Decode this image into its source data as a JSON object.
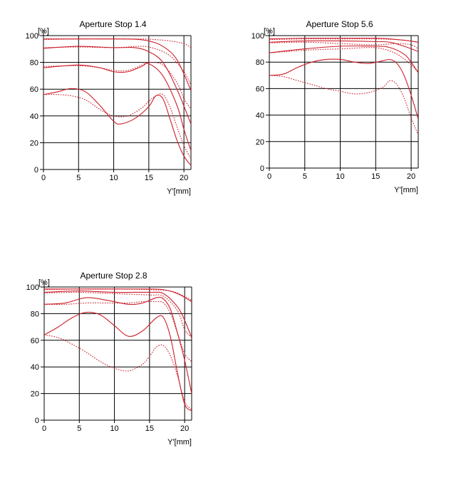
{
  "chart_data": [
    {
      "type": "line",
      "title": "Aperture Stop 1.4",
      "ylabel": "[%]",
      "xlabel": "Y'[mm]",
      "xlim": [
        0,
        21
      ],
      "ylim": [
        0,
        100
      ],
      "xticks": [
        0,
        5,
        10,
        15,
        20
      ],
      "yticks": [
        0,
        20,
        40,
        60,
        80,
        100
      ],
      "grid": true,
      "color": "#cc1f2a",
      "series": [
        {
          "style": "solid",
          "points": [
            [
              0,
              97.5
            ],
            [
              5,
              97.5
            ],
            [
              10,
              97.5
            ],
            [
              13,
              97.3
            ],
            [
              15,
              96
            ],
            [
              17,
              92
            ],
            [
              19,
              82
            ],
            [
              21,
              59
            ]
          ]
        },
        {
          "style": "dotted",
          "points": [
            [
              0,
              97
            ],
            [
              5,
              97.5
            ],
            [
              10,
              97.5
            ],
            [
              14,
              97.5
            ],
            [
              16,
              97
            ],
            [
              18,
              96
            ],
            [
              20,
              94
            ],
            [
              21,
              91
            ]
          ]
        },
        {
          "style": "solid",
          "points": [
            [
              0,
              90.5
            ],
            [
              5,
              92
            ],
            [
              10,
              91
            ],
            [
              13,
              91
            ],
            [
              15,
              88
            ],
            [
              17,
              80
            ],
            [
              19,
              60
            ],
            [
              21,
              34
            ]
          ]
        },
        {
          "style": "dotted",
          "points": [
            [
              0,
              91
            ],
            [
              5,
              91.5
            ],
            [
              10,
              91
            ],
            [
              14,
              92
            ],
            [
              16,
              90
            ],
            [
              18,
              85
            ],
            [
              20,
              73
            ],
            [
              21,
              63
            ]
          ]
        },
        {
          "style": "solid",
          "points": [
            [
              0,
              76
            ],
            [
              5,
              78
            ],
            [
              8,
              76
            ],
            [
              10,
              73
            ],
            [
              12,
              73
            ],
            [
              14,
              77
            ],
            [
              15,
              79
            ],
            [
              17,
              70
            ],
            [
              19,
              48
            ],
            [
              20,
              30
            ],
            [
              21,
              14
            ]
          ]
        },
        {
          "style": "dotted",
          "points": [
            [
              0,
              77
            ],
            [
              5,
              77.5
            ],
            [
              8,
              76
            ],
            [
              10,
              74
            ],
            [
              12,
              74
            ],
            [
              14,
              78
            ],
            [
              15,
              80
            ],
            [
              17,
              78
            ],
            [
              19,
              65
            ],
            [
              20,
              53
            ],
            [
              21,
              45
            ]
          ]
        },
        {
          "style": "solid",
          "points": [
            [
              0,
              56
            ],
            [
              2,
              58
            ],
            [
              4,
              60.5
            ],
            [
              6,
              58
            ],
            [
              8,
              48
            ],
            [
              10,
              36
            ],
            [
              11,
              34
            ],
            [
              13,
              38
            ],
            [
              15,
              47
            ],
            [
              16,
              55
            ],
            [
              17,
              53
            ],
            [
              18,
              38
            ],
            [
              19,
              22
            ],
            [
              20,
              10
            ],
            [
              21,
              3
            ]
          ]
        },
        {
          "style": "dotted",
          "points": [
            [
              0,
              56
            ],
            [
              2,
              56
            ],
            [
              4,
              55
            ],
            [
              6,
              52
            ],
            [
              8,
              45
            ],
            [
              10,
              40
            ],
            [
              12,
              40
            ],
            [
              14,
              46
            ],
            [
              15,
              51
            ],
            [
              16,
              55
            ],
            [
              17,
              56
            ],
            [
              18,
              47
            ],
            [
              19,
              32
            ],
            [
              20,
              18
            ],
            [
              21,
              8
            ]
          ]
        }
      ]
    },
    {
      "type": "line",
      "title": "Aperture Stop 5.6",
      "ylabel": "[%]",
      "xlabel": "Y'[mm]",
      "xlim": [
        0,
        21
      ],
      "ylim": [
        0,
        100
      ],
      "xticks": [
        0,
        5,
        10,
        15,
        20
      ],
      "yticks": [
        0,
        20,
        40,
        60,
        80,
        100
      ],
      "grid": true,
      "color": "#cc1f2a",
      "series": [
        {
          "style": "solid",
          "points": [
            [
              0,
              97.5
            ],
            [
              5,
              98
            ],
            [
              10,
              98
            ],
            [
              15,
              98
            ],
            [
              17,
              97.5
            ],
            [
              19,
              96.5
            ],
            [
              21,
              95
            ]
          ]
        },
        {
          "style": "dotted",
          "points": [
            [
              0,
              97
            ],
            [
              5,
              97.5
            ],
            [
              10,
              97.5
            ],
            [
              15,
              97.5
            ],
            [
              18,
              97
            ],
            [
              20,
              96
            ],
            [
              21,
              95
            ]
          ]
        },
        {
          "style": "solid",
          "points": [
            [
              0,
              95
            ],
            [
              5,
              96
            ],
            [
              10,
              96
            ],
            [
              15,
              95.5
            ],
            [
              17,
              95
            ],
            [
              19,
              92
            ],
            [
              21,
              88
            ]
          ]
        },
        {
          "style": "dotted",
          "points": [
            [
              0,
              94.5
            ],
            [
              5,
              95
            ],
            [
              10,
              94
            ],
            [
              15,
              93
            ],
            [
              18,
              94
            ],
            [
              20,
              93
            ],
            [
              21,
              90
            ]
          ]
        },
        {
          "style": "solid",
          "points": [
            [
              0,
              87
            ],
            [
              5,
              90
            ],
            [
              10,
              92
            ],
            [
              15,
              92
            ],
            [
              17,
              91
            ],
            [
              19,
              86
            ],
            [
              20,
              80
            ],
            [
              21,
              72
            ]
          ]
        },
        {
          "style": "dotted",
          "points": [
            [
              0,
              87
            ],
            [
              5,
              89
            ],
            [
              10,
              90
            ],
            [
              14,
              91
            ],
            [
              16,
              90
            ],
            [
              18,
              86
            ],
            [
              20,
              78
            ],
            [
              21,
              72
            ]
          ]
        },
        {
          "style": "solid",
          "points": [
            [
              0,
              70
            ],
            [
              2,
              71
            ],
            [
              4,
              76
            ],
            [
              6,
              80
            ],
            [
              8,
              82
            ],
            [
              10,
              82
            ],
            [
              12,
              80
            ],
            [
              14,
              79
            ],
            [
              16,
              81
            ],
            [
              17,
              82
            ],
            [
              18,
              79
            ],
            [
              19,
              70
            ],
            [
              20,
              55
            ],
            [
              21,
              37
            ]
          ]
        },
        {
          "style": "dotted",
          "points": [
            [
              0,
              70
            ],
            [
              2,
              69
            ],
            [
              4,
              66
            ],
            [
              6,
              63
            ],
            [
              8,
              60
            ],
            [
              10,
              58
            ],
            [
              12,
              56
            ],
            [
              14,
              57
            ],
            [
              16,
              61
            ],
            [
              17,
              66
            ],
            [
              18,
              63
            ],
            [
              19,
              53
            ],
            [
              20,
              38
            ],
            [
              21,
              25
            ]
          ]
        }
      ]
    },
    {
      "type": "line",
      "title": "Aperture Stop 2.8",
      "ylabel": "[%]",
      "xlabel": "Y'[mm]",
      "xlim": [
        0,
        21
      ],
      "ylim": [
        0,
        100
      ],
      "xticks": [
        0,
        5,
        10,
        15,
        20
      ],
      "yticks": [
        0,
        20,
        40,
        60,
        80,
        100
      ],
      "grid": true,
      "color": "#cc1f2a",
      "series": [
        {
          "style": "solid",
          "points": [
            [
              0,
              98.5
            ],
            [
              5,
              98.5
            ],
            [
              10,
              98.5
            ],
            [
              15,
              98.5
            ],
            [
              17,
              98
            ],
            [
              19,
              95
            ],
            [
              21,
              89
            ]
          ]
        },
        {
          "style": "dotted",
          "points": [
            [
              0,
              98
            ],
            [
              5,
              98.5
            ],
            [
              10,
              98.5
            ],
            [
              15,
              98
            ],
            [
              18,
              97
            ],
            [
              20,
              93
            ],
            [
              21,
              90
            ]
          ]
        },
        {
          "style": "solid",
          "points": [
            [
              0,
              96
            ],
            [
              5,
              97
            ],
            [
              10,
              96
            ],
            [
              15,
              96
            ],
            [
              17,
              95
            ],
            [
              19,
              85
            ],
            [
              20,
              75
            ],
            [
              21,
              62
            ]
          ]
        },
        {
          "style": "dotted",
          "points": [
            [
              0,
              95.5
            ],
            [
              5,
              96
            ],
            [
              10,
              95
            ],
            [
              15,
              94
            ],
            [
              17,
              93
            ],
            [
              19,
              82
            ],
            [
              20,
              68
            ],
            [
              21,
              62
            ]
          ]
        },
        {
          "style": "solid",
          "points": [
            [
              0,
              87
            ],
            [
              3,
              88
            ],
            [
              6,
              92
            ],
            [
              9,
              90
            ],
            [
              12,
              87
            ],
            [
              14,
              88
            ],
            [
              16,
              92
            ],
            [
              17,
              91
            ],
            [
              18,
              83
            ],
            [
              19,
              65
            ],
            [
              20,
              45
            ],
            [
              21,
              20
            ]
          ]
        },
        {
          "style": "dotted",
          "points": [
            [
              0,
              87
            ],
            [
              3,
              87
            ],
            [
              6,
              88
            ],
            [
              9,
              88
            ],
            [
              12,
              88
            ],
            [
              14,
              89
            ],
            [
              16,
              89
            ],
            [
              17,
              88
            ],
            [
              18,
              80
            ],
            [
              19,
              65
            ],
            [
              20,
              50
            ],
            [
              21,
              44
            ]
          ]
        },
        {
          "style": "solid",
          "points": [
            [
              0,
              64
            ],
            [
              2,
              70
            ],
            [
              4,
              77
            ],
            [
              6,
              81
            ],
            [
              8,
              79
            ],
            [
              10,
              71
            ],
            [
              12,
              63
            ],
            [
              14,
              67
            ],
            [
              16,
              77
            ],
            [
              17,
              77
            ],
            [
              18,
              62
            ],
            [
              19,
              35
            ],
            [
              20,
              12
            ],
            [
              21,
              7
            ]
          ]
        },
        {
          "style": "dotted",
          "points": [
            [
              0,
              64
            ],
            [
              2,
              62
            ],
            [
              4,
              57
            ],
            [
              6,
              51
            ],
            [
              8,
              44
            ],
            [
              10,
              39
            ],
            [
              12,
              37
            ],
            [
              14,
              42
            ],
            [
              15,
              48
            ],
            [
              16,
              55
            ],
            [
              17,
              56
            ],
            [
              18,
              48
            ],
            [
              19,
              33
            ],
            [
              20,
              14
            ],
            [
              21,
              8
            ]
          ]
        }
      ]
    }
  ]
}
